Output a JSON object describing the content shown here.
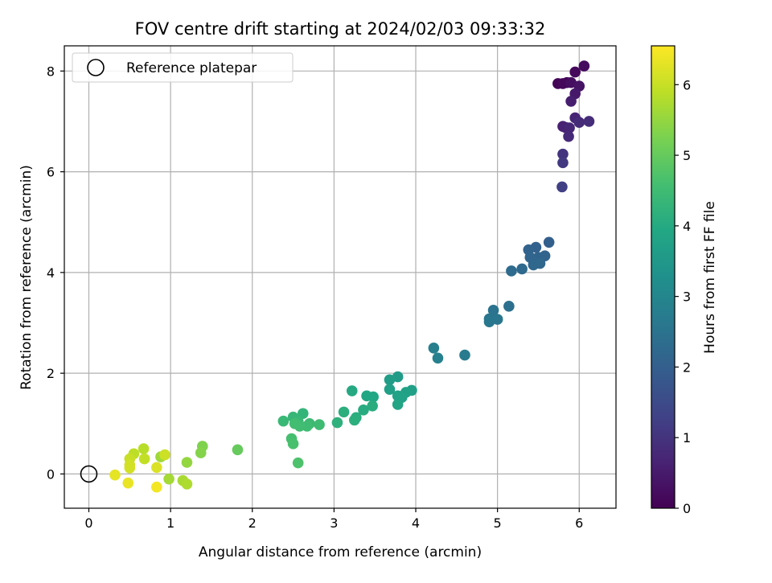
{
  "chart_data": {
    "type": "scatter",
    "title": "FOV centre drift starting at 2024/02/03 09:33:32",
    "xlabel": "Angular distance from reference (arcmin)",
    "ylabel": "Rotation from reference (arcmin)",
    "xlim": [
      -0.3,
      6.45
    ],
    "ylim": [
      -0.68,
      8.5
    ],
    "xticks": [
      0,
      1,
      2,
      3,
      4,
      5,
      6
    ],
    "yticks": [
      0,
      2,
      4,
      6,
      8
    ],
    "grid": true,
    "legend": {
      "placement": "top-left",
      "entries": [
        "Reference platepar"
      ]
    },
    "reference_point": {
      "name": "Reference platepar",
      "x": 0,
      "y": 0,
      "marker": "open-circle"
    },
    "colorbar": {
      "label": "Hours from first FF file",
      "colormap": "viridis",
      "range": [
        0,
        6.55
      ],
      "ticks": [
        0,
        1,
        2,
        3,
        4,
        5,
        6
      ],
      "placement": "right"
    },
    "points": [
      {
        "x": 5.74,
        "y": 7.75,
        "c": 0.05
      },
      {
        "x": 5.85,
        "y": 7.77,
        "c": 0.1
      },
      {
        "x": 5.8,
        "y": 7.75,
        "c": 0.12
      },
      {
        "x": 5.95,
        "y": 7.98,
        "c": 0.15
      },
      {
        "x": 6.06,
        "y": 8.1,
        "c": 0.2
      },
      {
        "x": 5.9,
        "y": 7.77,
        "c": 0.25
      },
      {
        "x": 6.0,
        "y": 7.7,
        "c": 0.35
      },
      {
        "x": 5.95,
        "y": 7.55,
        "c": 0.45
      },
      {
        "x": 5.9,
        "y": 7.4,
        "c": 0.55
      },
      {
        "x": 5.8,
        "y": 6.9,
        "c": 0.6
      },
      {
        "x": 5.83,
        "y": 6.88,
        "c": 0.65
      },
      {
        "x": 5.95,
        "y": 7.07,
        "c": 0.7
      },
      {
        "x": 5.88,
        "y": 6.87,
        "c": 0.72
      },
      {
        "x": 5.87,
        "y": 6.7,
        "c": 0.78
      },
      {
        "x": 6.0,
        "y": 6.98,
        "c": 0.82
      },
      {
        "x": 6.12,
        "y": 7.0,
        "c": 0.85
      },
      {
        "x": 5.8,
        "y": 6.35,
        "c": 1.0
      },
      {
        "x": 5.8,
        "y": 6.18,
        "c": 1.1
      },
      {
        "x": 5.79,
        "y": 5.7,
        "c": 1.25
      },
      {
        "x": 5.63,
        "y": 4.6,
        "c": 2.0
      },
      {
        "x": 5.47,
        "y": 4.5,
        "c": 2.05
      },
      {
        "x": 5.38,
        "y": 4.45,
        "c": 2.08
      },
      {
        "x": 5.58,
        "y": 4.33,
        "c": 2.1
      },
      {
        "x": 5.5,
        "y": 4.3,
        "c": 2.12
      },
      {
        "x": 5.4,
        "y": 4.3,
        "c": 2.15
      },
      {
        "x": 5.44,
        "y": 4.15,
        "c": 2.18
      },
      {
        "x": 5.52,
        "y": 4.18,
        "c": 2.2
      },
      {
        "x": 5.3,
        "y": 4.07,
        "c": 2.25
      },
      {
        "x": 5.17,
        "y": 4.03,
        "c": 2.3
      },
      {
        "x": 5.14,
        "y": 3.33,
        "c": 2.4
      },
      {
        "x": 4.95,
        "y": 3.25,
        "c": 2.5
      },
      {
        "x": 4.9,
        "y": 3.08,
        "c": 2.55
      },
      {
        "x": 5.0,
        "y": 3.07,
        "c": 2.58
      },
      {
        "x": 4.9,
        "y": 3.02,
        "c": 2.6
      },
      {
        "x": 4.22,
        "y": 2.5,
        "c": 2.8
      },
      {
        "x": 4.27,
        "y": 2.3,
        "c": 2.85
      },
      {
        "x": 4.6,
        "y": 2.36,
        "c": 2.7
      },
      {
        "x": 3.78,
        "y": 1.93,
        "c": 3.6
      },
      {
        "x": 3.68,
        "y": 1.87,
        "c": 3.65
      },
      {
        "x": 3.68,
        "y": 1.68,
        "c": 3.7
      },
      {
        "x": 3.95,
        "y": 1.66,
        "c": 3.72
      },
      {
        "x": 3.88,
        "y": 1.62,
        "c": 3.75
      },
      {
        "x": 3.78,
        "y": 1.55,
        "c": 3.78
      },
      {
        "x": 3.83,
        "y": 1.52,
        "c": 3.8
      },
      {
        "x": 3.78,
        "y": 1.38,
        "c": 3.85
      },
      {
        "x": 3.4,
        "y": 1.55,
        "c": 3.9
      },
      {
        "x": 3.48,
        "y": 1.53,
        "c": 3.92
      },
      {
        "x": 3.22,
        "y": 1.65,
        "c": 4.0
      },
      {
        "x": 3.36,
        "y": 1.27,
        "c": 4.05
      },
      {
        "x": 3.47,
        "y": 1.35,
        "c": 4.08
      },
      {
        "x": 3.27,
        "y": 1.12,
        "c": 4.1
      },
      {
        "x": 3.12,
        "y": 1.23,
        "c": 4.12
      },
      {
        "x": 3.25,
        "y": 1.07,
        "c": 4.15
      },
      {
        "x": 3.04,
        "y": 1.02,
        "c": 4.2
      },
      {
        "x": 2.62,
        "y": 1.2,
        "c": 4.3
      },
      {
        "x": 2.5,
        "y": 1.13,
        "c": 4.35
      },
      {
        "x": 2.56,
        "y": 1.05,
        "c": 4.38
      },
      {
        "x": 2.38,
        "y": 1.05,
        "c": 4.4
      },
      {
        "x": 2.7,
        "y": 1.0,
        "c": 4.45
      },
      {
        "x": 2.82,
        "y": 0.98,
        "c": 4.48
      },
      {
        "x": 2.67,
        "y": 0.95,
        "c": 4.5
      },
      {
        "x": 2.58,
        "y": 0.95,
        "c": 4.52
      },
      {
        "x": 2.52,
        "y": 1.0,
        "c": 4.55
      },
      {
        "x": 2.48,
        "y": 0.7,
        "c": 4.6
      },
      {
        "x": 2.5,
        "y": 0.6,
        "c": 4.65
      },
      {
        "x": 2.56,
        "y": 0.22,
        "c": 4.7
      },
      {
        "x": 1.82,
        "y": 0.48,
        "c": 5.0
      },
      {
        "x": 1.39,
        "y": 0.55,
        "c": 5.3
      },
      {
        "x": 1.37,
        "y": 0.42,
        "c": 5.35
      },
      {
        "x": 1.2,
        "y": 0.23,
        "c": 5.5
      },
      {
        "x": 0.88,
        "y": 0.34,
        "c": 5.6
      },
      {
        "x": 0.98,
        "y": -0.1,
        "c": 5.65
      },
      {
        "x": 1.15,
        "y": -0.13,
        "c": 5.7
      },
      {
        "x": 1.2,
        "y": -0.2,
        "c": 5.75
      },
      {
        "x": 0.67,
        "y": 0.5,
        "c": 5.85
      },
      {
        "x": 0.55,
        "y": 0.4,
        "c": 5.9
      },
      {
        "x": 0.68,
        "y": 0.3,
        "c": 5.95
      },
      {
        "x": 0.5,
        "y": 0.3,
        "c": 6.0
      },
      {
        "x": 0.93,
        "y": 0.38,
        "c": 6.05
      },
      {
        "x": 0.5,
        "y": 0.18,
        "c": 6.1
      },
      {
        "x": 0.5,
        "y": 0.12,
        "c": 6.12
      },
      {
        "x": 0.83,
        "y": 0.13,
        "c": 6.2
      },
      {
        "x": 0.32,
        "y": -0.02,
        "c": 6.3
      },
      {
        "x": 0.48,
        "y": -0.18,
        "c": 6.35
      },
      {
        "x": 0.83,
        "y": -0.26,
        "c": 6.45
      }
    ]
  }
}
